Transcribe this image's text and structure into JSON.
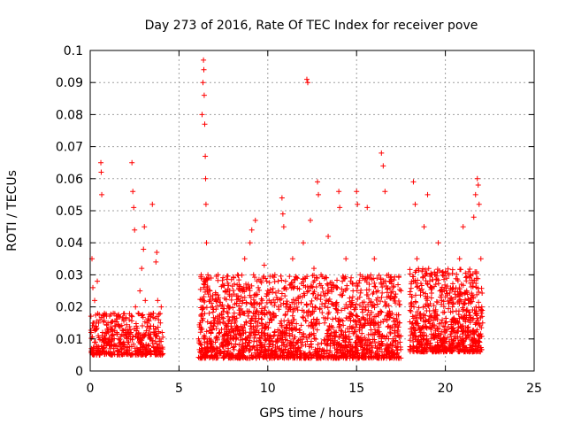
{
  "chart_data": {
    "type": "scatter",
    "title": "Day 273 of 2016, Rate Of TEC Index for receiver pove",
    "xlabel": "GPS time / hours",
    "ylabel": "ROTI / TECUs",
    "xlim": [
      0,
      25
    ],
    "ylim": [
      0,
      0.1
    ],
    "xticks": [
      0,
      5,
      10,
      15,
      20,
      25
    ],
    "xtick_labels": [
      "0",
      "5",
      "10",
      "15",
      "20",
      "25"
    ],
    "yticks": [
      0,
      0.01,
      0.02,
      0.03,
      0.04,
      0.05,
      0.06,
      0.07,
      0.08,
      0.09,
      0.1
    ],
    "ytick_labels": [
      "0",
      "0.01",
      "0.02",
      "0.03",
      "0.04",
      "0.05",
      "0.06",
      "0.07",
      "0.08",
      "0.09",
      "0.1"
    ],
    "grid": true,
    "marker": "+",
    "color": "#ff0000",
    "series": [
      {
        "name": "ROTI",
        "points": [
          [
            0.05,
            0.012
          ],
          [
            0.1,
            0.035
          ],
          [
            0.15,
            0.026
          ],
          [
            0.2,
            0.015
          ],
          [
            0.25,
            0.022
          ],
          [
            0.3,
            0.009
          ],
          [
            0.35,
            0.013
          ],
          [
            0.4,
            0.028
          ],
          [
            0.45,
            0.011
          ],
          [
            0.5,
            0.007
          ],
          [
            0.55,
            0.016
          ],
          [
            0.6,
            0.065
          ],
          [
            0.62,
            0.062
          ],
          [
            0.65,
            0.055
          ],
          [
            0.7,
            0.012
          ],
          [
            0.75,
            0.009
          ],
          [
            0.8,
            0.018
          ],
          [
            0.85,
            0.01
          ],
          [
            0.9,
            0.006
          ],
          [
            0.95,
            0.013
          ],
          [
            1.0,
            0.015
          ],
          [
            1.1,
            0.009
          ],
          [
            1.2,
            0.011
          ],
          [
            1.3,
            0.018
          ],
          [
            1.4,
            0.008
          ],
          [
            1.5,
            0.012
          ],
          [
            1.6,
            0.01
          ],
          [
            1.7,
            0.014
          ],
          [
            1.8,
            0.007
          ],
          [
            1.9,
            0.011
          ],
          [
            2.0,
            0.013
          ],
          [
            2.1,
            0.009
          ],
          [
            2.2,
            0.016
          ],
          [
            2.3,
            0.012
          ],
          [
            2.35,
            0.065
          ],
          [
            2.4,
            0.056
          ],
          [
            2.45,
            0.051
          ],
          [
            2.5,
            0.044
          ],
          [
            2.55,
            0.02
          ],
          [
            2.6,
            0.014
          ],
          [
            2.7,
            0.018
          ],
          [
            2.8,
            0.025
          ],
          [
            2.9,
            0.032
          ],
          [
            3.0,
            0.038
          ],
          [
            3.05,
            0.045
          ],
          [
            3.1,
            0.022
          ],
          [
            3.2,
            0.015
          ],
          [
            3.3,
            0.011
          ],
          [
            3.4,
            0.014
          ],
          [
            3.5,
            0.052
          ],
          [
            3.55,
            0.018
          ],
          [
            3.6,
            0.012
          ],
          [
            3.7,
            0.034
          ],
          [
            3.75,
            0.037
          ],
          [
            3.8,
            0.022
          ],
          [
            3.85,
            0.016
          ],
          [
            3.9,
            0.01
          ],
          [
            3.95,
            0.015
          ],
          [
            4.0,
            0.02
          ],
          [
            4.05,
            0.012
          ],
          [
            6.1,
            0.01
          ],
          [
            6.2,
            0.015
          ],
          [
            6.25,
            0.03
          ],
          [
            6.3,
            0.08
          ],
          [
            6.35,
            0.09
          ],
          [
            6.38,
            0.097
          ],
          [
            6.4,
            0.094
          ],
          [
            6.42,
            0.086
          ],
          [
            6.45,
            0.077
          ],
          [
            6.48,
            0.067
          ],
          [
            6.5,
            0.06
          ],
          [
            6.52,
            0.052
          ],
          [
            6.55,
            0.04
          ],
          [
            6.6,
            0.025
          ],
          [
            6.7,
            0.018
          ],
          [
            6.8,
            0.012
          ],
          [
            6.9,
            0.02
          ],
          [
            7.0,
            0.015
          ],
          [
            7.1,
            0.022
          ],
          [
            7.2,
            0.03
          ],
          [
            7.3,
            0.012
          ],
          [
            7.4,
            0.018
          ],
          [
            7.5,
            0.009
          ],
          [
            7.6,
            0.025
          ],
          [
            7.7,
            0.014
          ],
          [
            7.8,
            0.02
          ],
          [
            7.9,
            0.01
          ],
          [
            8.0,
            0.016
          ],
          [
            8.1,
            0.024
          ],
          [
            8.2,
            0.013
          ],
          [
            8.3,
            0.03
          ],
          [
            8.4,
            0.019
          ],
          [
            8.5,
            0.011
          ],
          [
            8.6,
            0.022
          ],
          [
            8.7,
            0.035
          ],
          [
            8.8,
            0.015
          ],
          [
            8.9,
            0.027
          ],
          [
            9.0,
            0.04
          ],
          [
            9.1,
            0.044
          ],
          [
            9.2,
            0.03
          ],
          [
            9.3,
            0.047
          ],
          [
            9.4,
            0.021
          ],
          [
            9.5,
            0.012
          ],
          [
            9.6,
            0.028
          ],
          [
            9.7,
            0.018
          ],
          [
            9.8,
            0.033
          ],
          [
            9.9,
            0.014
          ],
          [
            10.0,
            0.024
          ],
          [
            10.2,
            0.016
          ],
          [
            10.4,
            0.03
          ],
          [
            10.6,
            0.02
          ],
          [
            10.8,
            0.054
          ],
          [
            10.85,
            0.049
          ],
          [
            10.9,
            0.045
          ],
          [
            11.0,
            0.028
          ],
          [
            11.2,
            0.015
          ],
          [
            11.4,
            0.035
          ],
          [
            11.6,
            0.022
          ],
          [
            11.8,
            0.012
          ],
          [
            12.0,
            0.04
          ],
          [
            12.2,
            0.091
          ],
          [
            12.25,
            0.09
          ],
          [
            12.3,
            0.025
          ],
          [
            12.4,
            0.047
          ],
          [
            12.5,
            0.018
          ],
          [
            12.6,
            0.032
          ],
          [
            12.8,
            0.059
          ],
          [
            12.85,
            0.055
          ],
          [
            13.0,
            0.03
          ],
          [
            13.2,
            0.015
          ],
          [
            13.4,
            0.042
          ],
          [
            13.6,
            0.021
          ],
          [
            13.8,
            0.012
          ],
          [
            14.0,
            0.056
          ],
          [
            14.05,
            0.051
          ],
          [
            14.2,
            0.028
          ],
          [
            14.4,
            0.035
          ],
          [
            14.6,
            0.018
          ],
          [
            14.8,
            0.025
          ],
          [
            15.0,
            0.056
          ],
          [
            15.05,
            0.052
          ],
          [
            15.2,
            0.03
          ],
          [
            15.4,
            0.02
          ],
          [
            15.6,
            0.051
          ],
          [
            15.8,
            0.015
          ],
          [
            16.0,
            0.035
          ],
          [
            16.2,
            0.025
          ],
          [
            16.4,
            0.068
          ],
          [
            16.5,
            0.064
          ],
          [
            16.6,
            0.056
          ],
          [
            16.8,
            0.03
          ],
          [
            17.0,
            0.018
          ],
          [
            17.2,
            0.024
          ],
          [
            17.4,
            0.015
          ],
          [
            18.2,
            0.059
          ],
          [
            18.3,
            0.052
          ],
          [
            18.4,
            0.035
          ],
          [
            18.6,
            0.025
          ],
          [
            18.8,
            0.045
          ],
          [
            19.0,
            0.055
          ],
          [
            19.2,
            0.03
          ],
          [
            19.4,
            0.018
          ],
          [
            19.6,
            0.04
          ],
          [
            19.8,
            0.022
          ],
          [
            20.0,
            0.015
          ],
          [
            20.2,
            0.03
          ],
          [
            20.4,
            0.02
          ],
          [
            20.6,
            0.012
          ],
          [
            20.8,
            0.035
          ],
          [
            21.0,
            0.045
          ],
          [
            21.2,
            0.025
          ],
          [
            21.4,
            0.03
          ],
          [
            21.6,
            0.048
          ],
          [
            21.7,
            0.055
          ],
          [
            21.8,
            0.06
          ],
          [
            21.85,
            0.058
          ],
          [
            21.9,
            0.052
          ],
          [
            22.0,
            0.035
          ],
          [
            22.05,
            0.02
          ],
          [
            22.1,
            0.015
          ]
        ]
      }
    ],
    "baseline_fill": {
      "note": "dense low-value cloud",
      "segments": [
        {
          "from": 0.0,
          "to": 4.1,
          "low": 0.005,
          "high": 0.018,
          "count": 420
        },
        {
          "from": 6.1,
          "to": 17.5,
          "low": 0.004,
          "high": 0.03,
          "count": 1800
        },
        {
          "from": 18.0,
          "to": 22.1,
          "low": 0.006,
          "high": 0.032,
          "count": 760
        }
      ]
    }
  }
}
